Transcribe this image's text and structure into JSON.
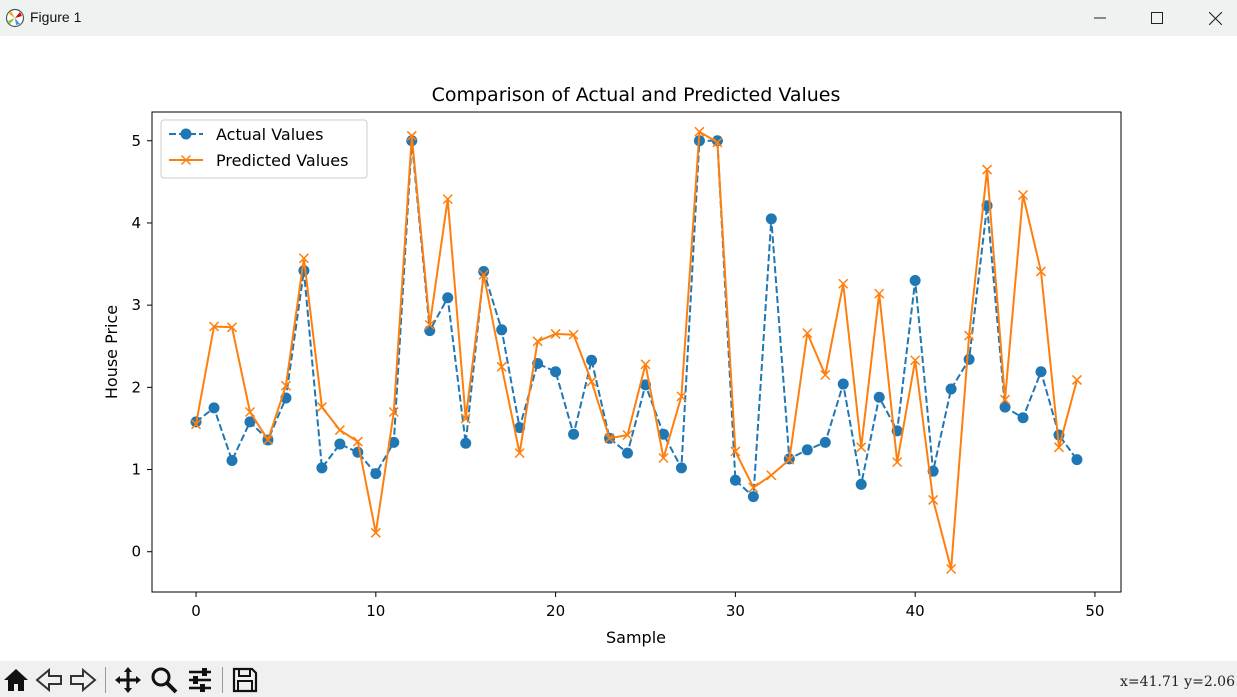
{
  "window": {
    "title": "Figure 1",
    "minimize_icon": "minimize-icon",
    "maximize_icon": "maximize-icon",
    "close_icon": "close-icon"
  },
  "toolbar": {
    "buttons": [
      "home-icon",
      "back-icon",
      "forward-icon",
      "pan-icon",
      "zoom-icon",
      "configure-subplots-icon",
      "save-icon"
    ],
    "coords": "x=41.71 y=2.06"
  },
  "chart_data": {
    "type": "line",
    "title": "Comparison of Actual and Predicted Values",
    "xlabel": "Sample",
    "ylabel": "House Price",
    "xlim": [
      -2.45,
      51.45
    ],
    "ylim": [
      -0.49,
      5.35
    ],
    "xticks": [
      0,
      10,
      20,
      30,
      40,
      50
    ],
    "yticks": [
      0,
      1,
      2,
      3,
      4,
      5
    ],
    "grid": false,
    "legend_position": "upper left",
    "x": [
      0,
      1,
      2,
      3,
      4,
      5,
      6,
      7,
      8,
      9,
      10,
      11,
      12,
      13,
      14,
      15,
      16,
      17,
      18,
      19,
      20,
      21,
      22,
      23,
      24,
      25,
      26,
      27,
      28,
      29,
      30,
      31,
      32,
      33,
      34,
      35,
      36,
      37,
      38,
      39,
      40,
      41,
      42,
      43,
      44,
      45,
      46,
      47,
      48,
      49
    ],
    "series": [
      {
        "name": "Actual Values",
        "color": "#1f77b4",
        "line_style": "dashed",
        "marker": "circle",
        "values": [
          1.58,
          1.75,
          1.11,
          1.58,
          1.36,
          1.87,
          3.42,
          1.02,
          1.31,
          1.21,
          0.95,
          1.33,
          5.0,
          2.69,
          3.09,
          1.32,
          3.41,
          2.7,
          1.51,
          2.29,
          2.19,
          1.43,
          2.33,
          1.38,
          1.2,
          2.03,
          1.43,
          1.02,
          5.0,
          5.0,
          0.87,
          0.67,
          4.05,
          1.13,
          1.24,
          1.33,
          2.04,
          0.82,
          1.88,
          1.47,
          3.3,
          0.98,
          1.98,
          2.34,
          4.21,
          1.76,
          1.63,
          2.19,
          1.42,
          1.12
        ]
      },
      {
        "name": "Predicted Values",
        "color": "#ff7f0e",
        "line_style": "solid",
        "marker": "x",
        "values": [
          1.55,
          2.74,
          2.73,
          1.7,
          1.36,
          2.02,
          3.57,
          1.76,
          1.48,
          1.34,
          0.23,
          1.7,
          5.06,
          2.76,
          4.29,
          1.62,
          3.37,
          2.25,
          1.2,
          2.56,
          2.65,
          2.64,
          2.07,
          1.38,
          1.42,
          2.28,
          1.14,
          1.89,
          5.11,
          4.98,
          1.22,
          0.78,
          0.93,
          1.12,
          2.66,
          2.15,
          3.26,
          1.27,
          3.14,
          1.09,
          2.33,
          0.63,
          -0.21,
          2.63,
          4.65,
          1.85,
          4.34,
          3.41,
          1.27,
          2.09
        ]
      }
    ]
  }
}
